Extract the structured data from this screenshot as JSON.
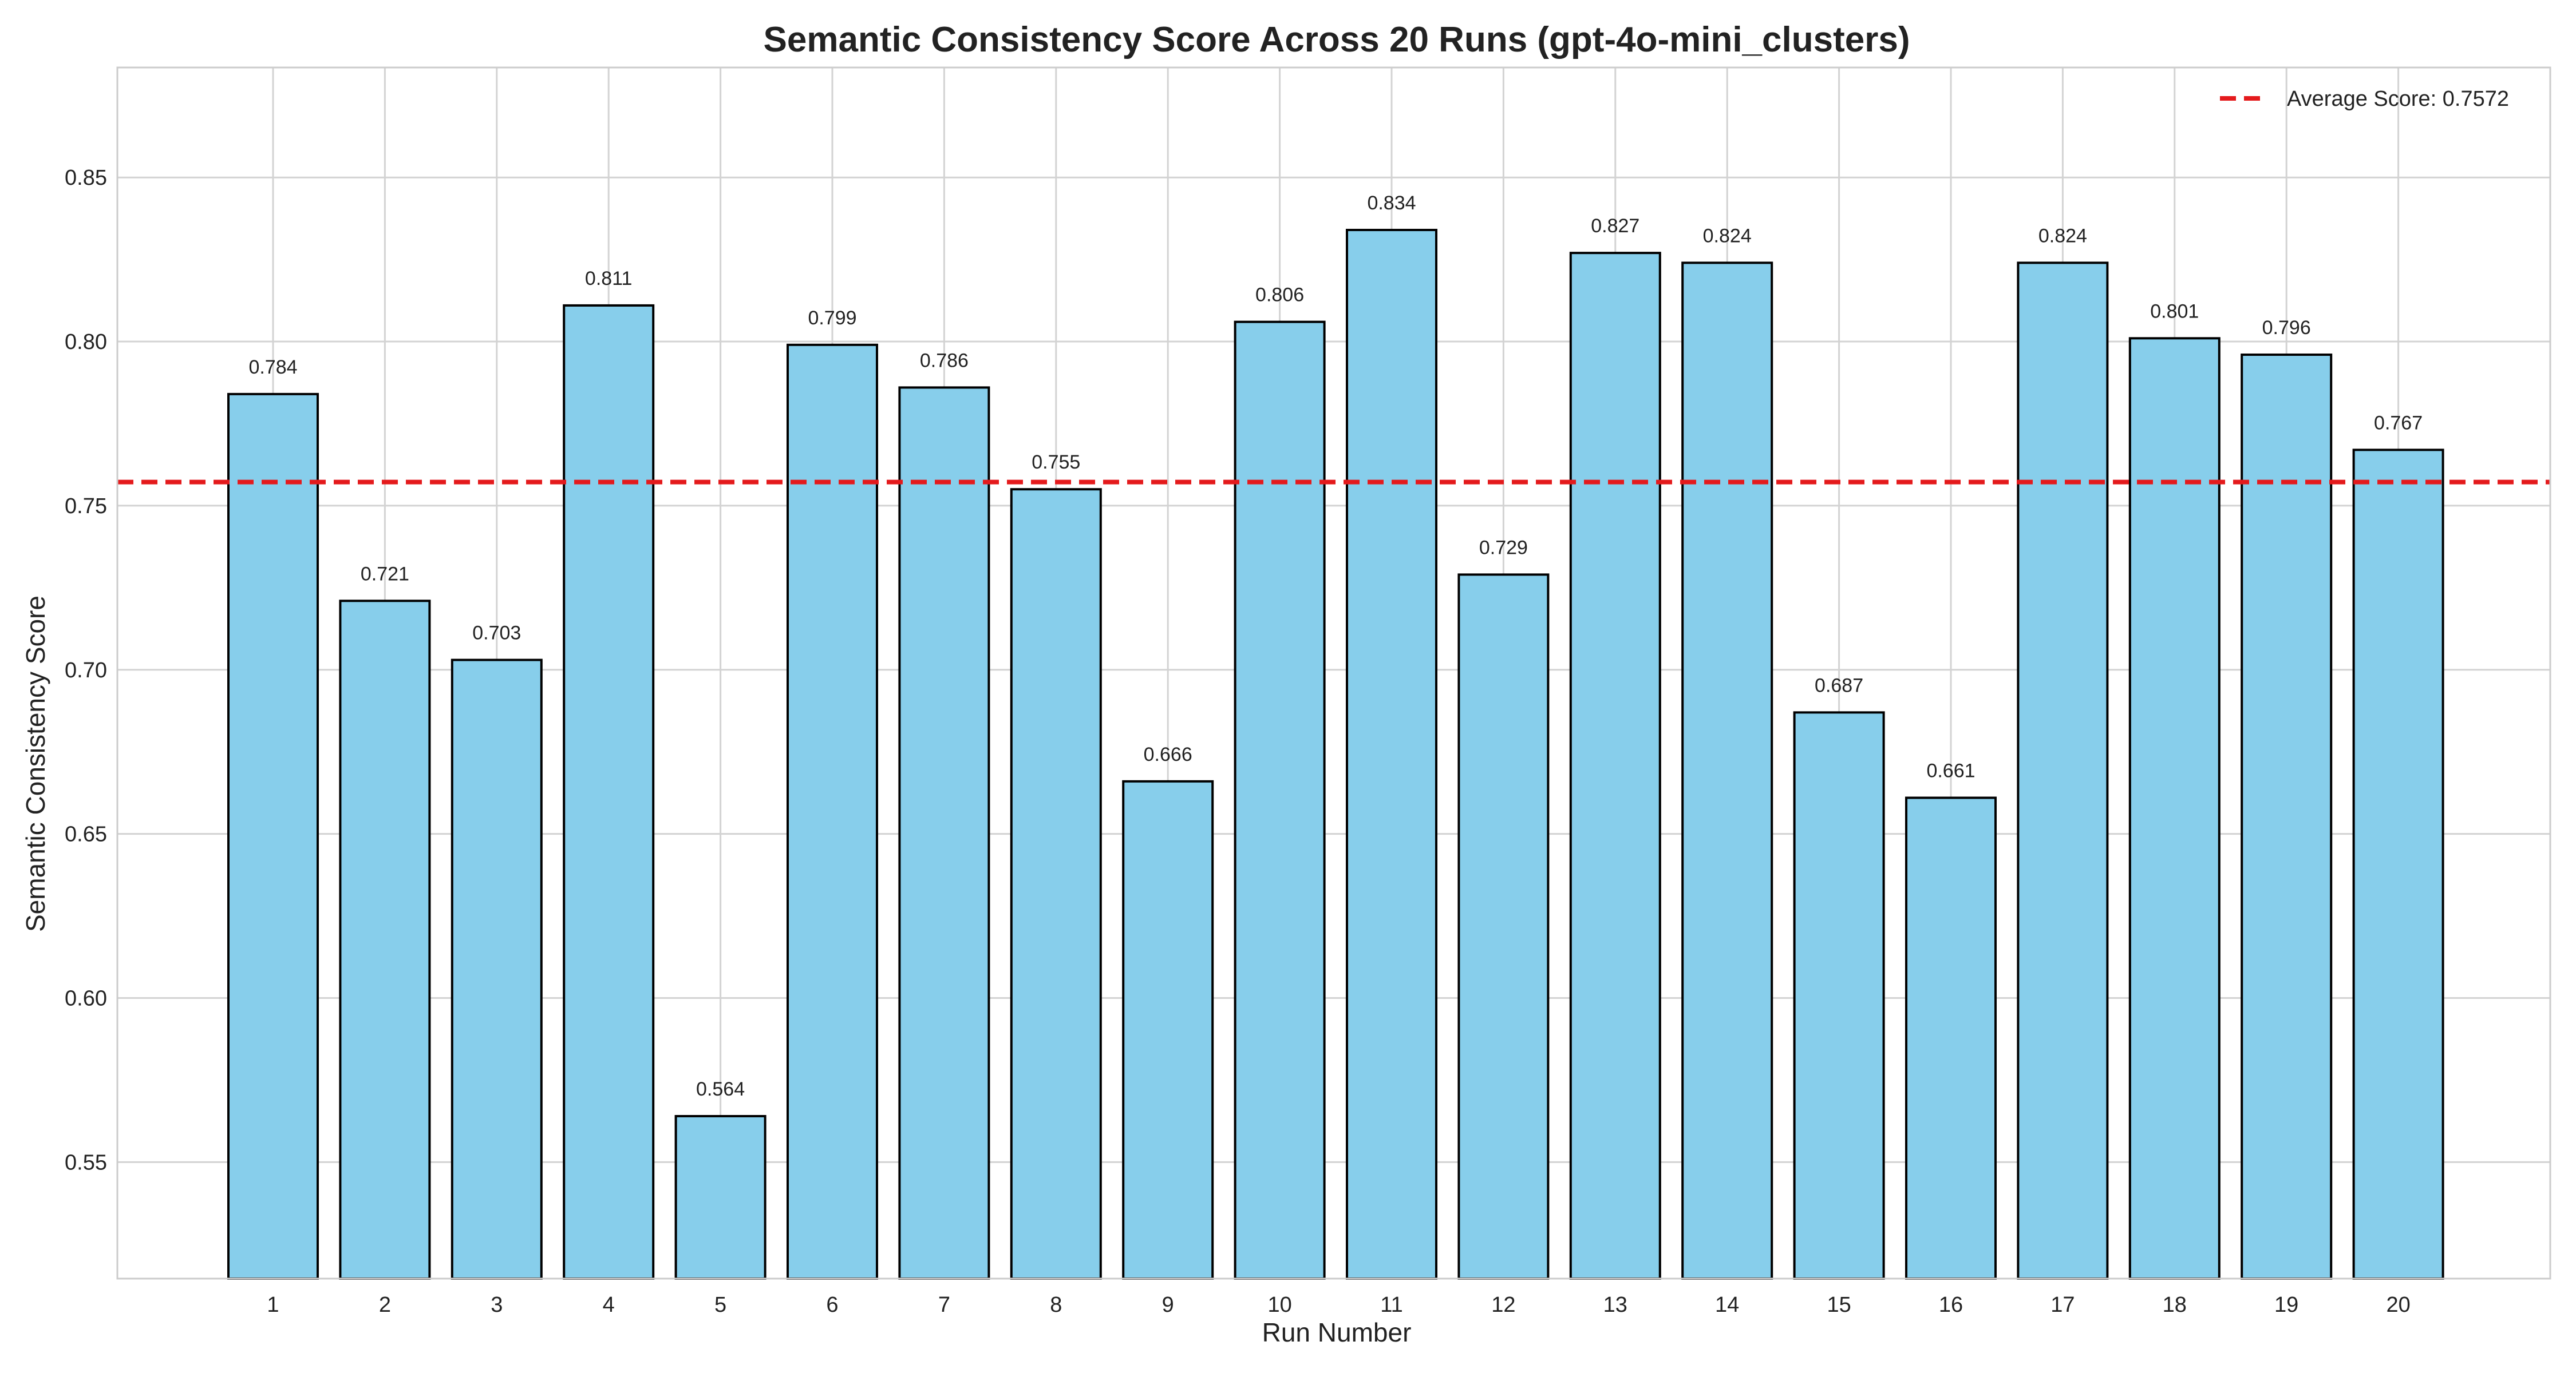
{
  "chart_data": {
    "type": "bar",
    "title": "Semantic Consistency Score Across 20 Runs (gpt-4o-mini_clusters)",
    "xlabel": "Run Number",
    "ylabel": "Semantic Consistency Score",
    "categories": [
      "1",
      "2",
      "3",
      "4",
      "5",
      "6",
      "7",
      "8",
      "9",
      "10",
      "11",
      "12",
      "13",
      "14",
      "15",
      "16",
      "17",
      "18",
      "19",
      "20"
    ],
    "values": [
      0.784,
      0.721,
      0.703,
      0.811,
      0.564,
      0.799,
      0.786,
      0.755,
      0.666,
      0.806,
      0.834,
      0.729,
      0.827,
      0.824,
      0.687,
      0.661,
      0.824,
      0.801,
      0.796,
      0.767
    ],
    "data_labels": [
      "0.784",
      "0.721",
      "0.703",
      "0.811",
      "0.564",
      "0.799",
      "0.786",
      "0.755",
      "0.666",
      "0.806",
      "0.834",
      "0.729",
      "0.827",
      "0.824",
      "0.687",
      "0.661",
      "0.824",
      "0.801",
      "0.796",
      "0.767"
    ],
    "ylim": [
      0.5145,
      0.8835
    ],
    "yticks": [
      0.55,
      0.6,
      0.65,
      0.7,
      0.75,
      0.8,
      0.85
    ],
    "ytick_labels": [
      "0.55",
      "0.60",
      "0.65",
      "0.70",
      "0.75",
      "0.80",
      "0.85"
    ],
    "reference_line": {
      "value": 0.7572,
      "label": "Average Score: 0.7572",
      "color": "#e41a1c",
      "style": "dashed"
    },
    "legend_position": "top-right",
    "grid": true,
    "colors": {
      "bar_fill": "#87ceeb",
      "bar_edge": "#000000",
      "grid": "#d3d3d3",
      "axes_edge": "#cccccc"
    }
  }
}
